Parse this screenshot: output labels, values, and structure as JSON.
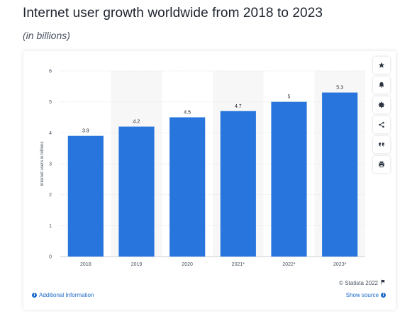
{
  "header": {
    "title": "Internet user growth worldwide from 2018 to 2023",
    "subtitle": "(in billions)"
  },
  "chart_data": {
    "type": "bar",
    "categories": [
      "2018",
      "2019",
      "2020",
      "2021*",
      "2022*",
      "2023*"
    ],
    "values": [
      3.9,
      4.2,
      4.5,
      4.7,
      5,
      5.3
    ],
    "data_labels": [
      "3.9",
      "4.2",
      "4.5",
      "4.7",
      "5",
      "5.3"
    ],
    "title": "Internet user growth worldwide from 2018 to 2023",
    "subtitle": "(in billions)",
    "xlabel": "",
    "ylabel": "Internet users in billions",
    "ylim": [
      0,
      6
    ],
    "y_ticks": [
      "0",
      "1",
      "2",
      "3",
      "4",
      "5",
      "6"
    ],
    "grid": true,
    "bar_color": "#2876dd",
    "alt_band_color": "#f7f7f7"
  },
  "toolbar": {
    "buttons": [
      {
        "icon": "star-icon"
      },
      {
        "icon": "bell-icon"
      },
      {
        "icon": "gear-icon"
      },
      {
        "icon": "share-icon"
      },
      {
        "icon": "quote-icon"
      },
      {
        "icon": "print-icon"
      }
    ]
  },
  "footer": {
    "credit": "© Statista 2022",
    "additional_info": "Additional Information",
    "show_source": "Show source"
  },
  "colors": {
    "accent": "#1b6ac9",
    "bar": "#2876dd"
  }
}
